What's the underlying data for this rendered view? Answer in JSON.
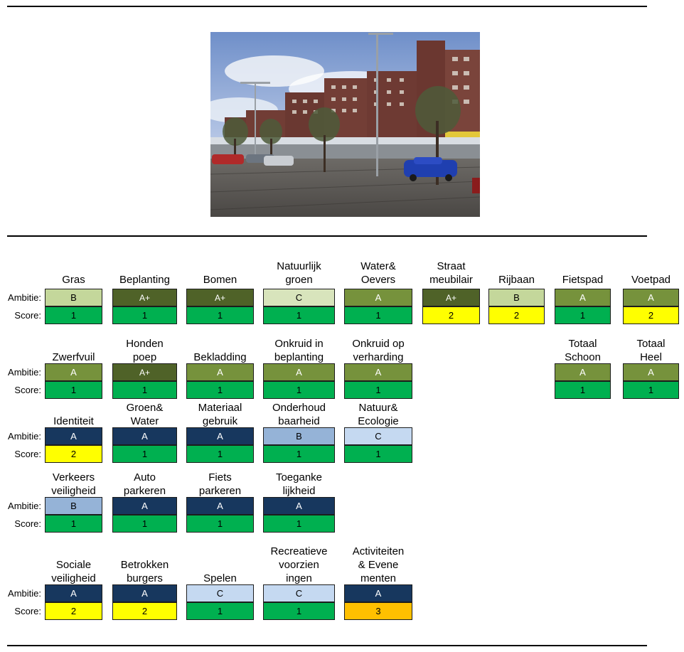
{
  "colors": {
    "B": "#c4d79b",
    "A+": "#4f6228",
    "A_light": "#76923c",
    "C": "#d8e4bc",
    "navy": "#17375e",
    "blue_B": "#95b3d7",
    "blue_C": "#c5d9f1",
    "score_1": "#00b050",
    "score_2": "#ffff00",
    "score_3": "#ffc000"
  },
  "row_labels": {
    "ambitie": "Ambitie:",
    "score": "Score:"
  },
  "rows": [
    {
      "items": [
        {
          "label": "Gras",
          "ambitie": "B",
          "score": "1",
          "amb_color": "#c4d79b",
          "amb_text": "#000000",
          "score_color": "#00b050"
        },
        {
          "label": "Beplanting",
          "ambitie": "A+",
          "score": "1",
          "amb_color": "#4f6228",
          "amb_text": "#ffffff",
          "score_color": "#00b050"
        },
        {
          "label": "Bomen",
          "ambitie": "A+",
          "score": "1",
          "amb_color": "#4f6228",
          "amb_text": "#ffffff",
          "score_color": "#00b050"
        },
        {
          "label": "Natuurlijk\ngroen",
          "ambitie": "C",
          "score": "1",
          "amb_color": "#d8e4bc",
          "amb_text": "#000000",
          "score_color": "#00b050"
        },
        {
          "label": "Water&\nOevers",
          "ambitie": "A",
          "score": "1",
          "amb_color": "#76923c",
          "amb_text": "#ffffff",
          "score_color": "#00b050"
        },
        {
          "label": "Straat\nmeubilair",
          "ambitie": "A+",
          "score": "2",
          "amb_color": "#4f6228",
          "amb_text": "#ffffff",
          "score_color": "#ffff00"
        },
        {
          "label": "Rijbaan",
          "ambitie": "B",
          "score": "2",
          "amb_color": "#c4d79b",
          "amb_text": "#000000",
          "score_color": "#ffff00"
        },
        {
          "label": "Fietspad",
          "ambitie": "A",
          "score": "1",
          "amb_color": "#76923c",
          "amb_text": "#ffffff",
          "score_color": "#00b050"
        },
        {
          "label": "Voetpad",
          "ambitie": "A",
          "score": "2",
          "amb_color": "#76923c",
          "amb_text": "#ffffff",
          "score_color": "#ffff00"
        }
      ]
    },
    {
      "items": [
        {
          "label": "Zwerfvuil",
          "ambitie": "A",
          "score": "1",
          "amb_color": "#76923c",
          "amb_text": "#ffffff",
          "score_color": "#00b050"
        },
        {
          "label": "Honden\npoep",
          "ambitie": "A+",
          "score": "1",
          "amb_color": "#4f6228",
          "amb_text": "#ffffff",
          "score_color": "#00b050"
        },
        {
          "label": "Bekladding",
          "ambitie": "A",
          "score": "1",
          "amb_color": "#76923c",
          "amb_text": "#ffffff",
          "score_color": "#00b050"
        },
        {
          "label": "Onkruid in\nbeplanting",
          "ambitie": "A",
          "score": "1",
          "amb_color": "#76923c",
          "amb_text": "#ffffff",
          "score_color": "#00b050"
        },
        {
          "label": "Onkruid op\nverharding",
          "ambitie": "A",
          "score": "1",
          "amb_color": "#76923c",
          "amb_text": "#ffffff",
          "score_color": "#00b050"
        },
        {
          "label": "Totaal\nSchoon",
          "ambitie": "A",
          "score": "1",
          "amb_color": "#76923c",
          "amb_text": "#ffffff",
          "score_color": "#00b050"
        },
        {
          "label": "Totaal\nHeel",
          "ambitie": "A",
          "score": "1",
          "amb_color": "#76923c",
          "amb_text": "#ffffff",
          "score_color": "#00b050"
        }
      ]
    },
    {
      "items": [
        {
          "label": "Identiteit",
          "ambitie": "A",
          "score": "2",
          "amb_color": "#17375e",
          "amb_text": "#ffffff",
          "score_color": "#ffff00"
        },
        {
          "label": "Groen&\nWater",
          "ambitie": "A",
          "score": "1",
          "amb_color": "#17375e",
          "amb_text": "#ffffff",
          "score_color": "#00b050"
        },
        {
          "label": "Materiaal\ngebruik",
          "ambitie": "A",
          "score": "1",
          "amb_color": "#17375e",
          "amb_text": "#ffffff",
          "score_color": "#00b050"
        },
        {
          "label": "Onderhoud\nbaarheid",
          "ambitie": "B",
          "score": "1",
          "amb_color": "#95b3d7",
          "amb_text": "#000000",
          "score_color": "#00b050"
        },
        {
          "label": "Natuur&\nEcologie",
          "ambitie": "C",
          "score": "1",
          "amb_color": "#c5d9f1",
          "amb_text": "#000000",
          "score_color": "#00b050"
        }
      ]
    },
    {
      "items": [
        {
          "label": "Verkeers\nveiligheid",
          "ambitie": "B",
          "score": "1",
          "amb_color": "#95b3d7",
          "amb_text": "#000000",
          "score_color": "#00b050"
        },
        {
          "label": "Auto\nparkeren",
          "ambitie": "A",
          "score": "1",
          "amb_color": "#17375e",
          "amb_text": "#ffffff",
          "score_color": "#00b050"
        },
        {
          "label": "Fiets\nparkeren",
          "ambitie": "A",
          "score": "1",
          "amb_color": "#17375e",
          "amb_text": "#ffffff",
          "score_color": "#00b050"
        },
        {
          "label": "Toeganke\nlijkheid",
          "ambitie": "A",
          "score": "1",
          "amb_color": "#17375e",
          "amb_text": "#ffffff",
          "score_color": "#00b050"
        }
      ]
    },
    {
      "items": [
        {
          "label": "Sociale\nveiligheid",
          "ambitie": "A",
          "score": "2",
          "amb_color": "#17375e",
          "amb_text": "#ffffff",
          "score_color": "#ffff00"
        },
        {
          "label": "Betrokken\nburgers",
          "ambitie": "A",
          "score": "2",
          "amb_color": "#17375e",
          "amb_text": "#ffffff",
          "score_color": "#ffff00"
        },
        {
          "label": "Spelen",
          "ambitie": "C",
          "score": "1",
          "amb_color": "#c5d9f1",
          "amb_text": "#000000",
          "score_color": "#00b050"
        },
        {
          "label": "Recreatieve\nvoorzien\ningen",
          "ambitie": "C",
          "score": "1",
          "amb_color": "#c5d9f1",
          "amb_text": "#000000",
          "score_color": "#00b050"
        },
        {
          "label": "Activiteiten\n& Evene\nmenten",
          "ambitie": "A",
          "score": "3",
          "amb_color": "#17375e",
          "amb_text": "#ffffff",
          "score_color": "#ffc000"
        }
      ]
    }
  ]
}
